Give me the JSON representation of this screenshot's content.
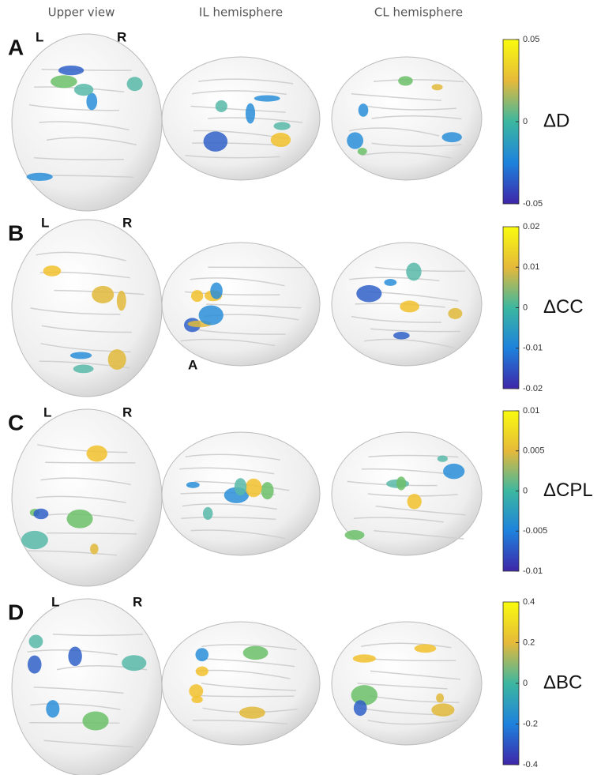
{
  "headers": [
    "Upper view",
    "IL hemisphere",
    "CL hemisphere"
  ],
  "panels": [
    {
      "letter": "A",
      "left": "L",
      "right": "R",
      "measure": "ΔD",
      "colorbar": {
        "lim": [
          -0.05,
          0.05
        ],
        "ticks": [
          0.05,
          0,
          -0.05
        ]
      }
    },
    {
      "letter": "B",
      "left": "L",
      "right": "R",
      "measure": "ΔCC",
      "annotation": "A",
      "colorbar": {
        "lim": [
          -0.02,
          0.02
        ],
        "ticks": [
          0.02,
          0.01,
          0,
          -0.01,
          -0.02
        ]
      }
    },
    {
      "letter": "C",
      "left": "L",
      "right": "R",
      "measure": "ΔCPL",
      "colorbar": {
        "lim": [
          -0.01,
          0.01
        ],
        "ticks": [
          0.01,
          0.005,
          0,
          -0.005,
          -0.01
        ]
      }
    },
    {
      "letter": "D",
      "left": "L",
      "right": "R",
      "measure": "ΔBC",
      "colorbar": {
        "lim": [
          -0.4,
          0.4
        ],
        "ticks": [
          0.4,
          0.2,
          0,
          -0.2,
          -0.4
        ]
      }
    }
  ]
}
